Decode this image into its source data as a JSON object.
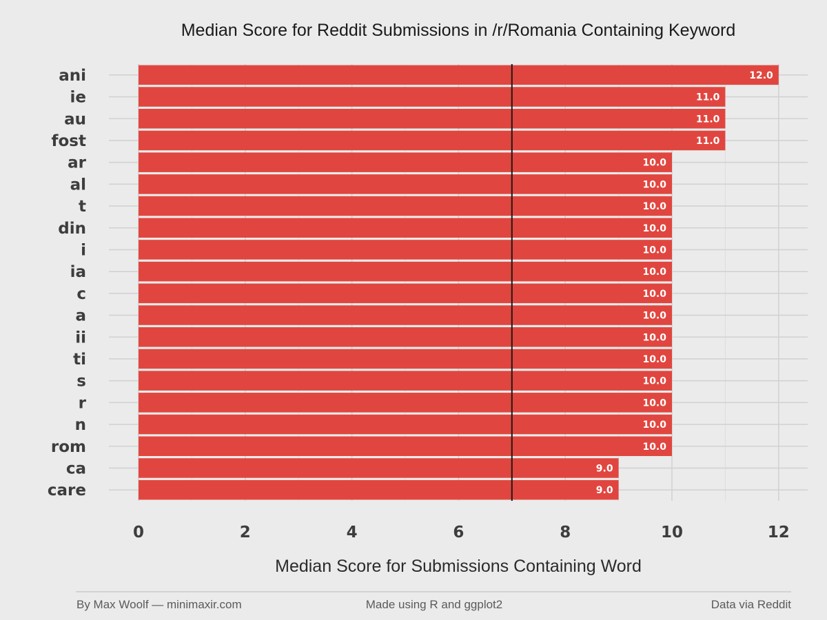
{
  "chart_data": {
    "type": "bar",
    "orientation": "horizontal",
    "title": "Median Score for Reddit Submissions in /r/Romania Containing Keyword",
    "xlabel": "Median Score for Submissions Containing Word",
    "ylabel": "",
    "xlim": [
      0,
      12
    ],
    "x_ticks": [
      0,
      2,
      4,
      6,
      8,
      10,
      12
    ],
    "categories": [
      "ani",
      "ie",
      "au",
      "fost",
      "ar",
      "al",
      "t",
      "din",
      "i",
      "ia",
      "c",
      "a",
      "ii",
      "ti",
      "s",
      "r",
      "n",
      "rom",
      "ca",
      "care"
    ],
    "values": [
      12,
      11,
      11,
      11,
      10,
      10,
      10,
      10,
      10,
      10,
      10,
      10,
      10,
      10,
      10,
      10,
      10,
      10,
      9,
      9
    ],
    "value_labels": [
      "12.0",
      "11.0",
      "11.0",
      "11.0",
      "10.0",
      "10.0",
      "10.0",
      "10.0",
      "10.0",
      "10.0",
      "10.0",
      "10.0",
      "10.0",
      "10.0",
      "10.0",
      "10.0",
      "10.0",
      "10.0",
      "9.0",
      "9.0"
    ],
    "reference_line": 7,
    "bar_color": "#e0463f",
    "reference_line_color": "#1a1a1a",
    "grid": true,
    "legend": "none"
  },
  "footer": {
    "left": "By Max Woolf — minimaxir.com",
    "center": "Made using R and ggplot2",
    "right": "Data via Reddit"
  }
}
